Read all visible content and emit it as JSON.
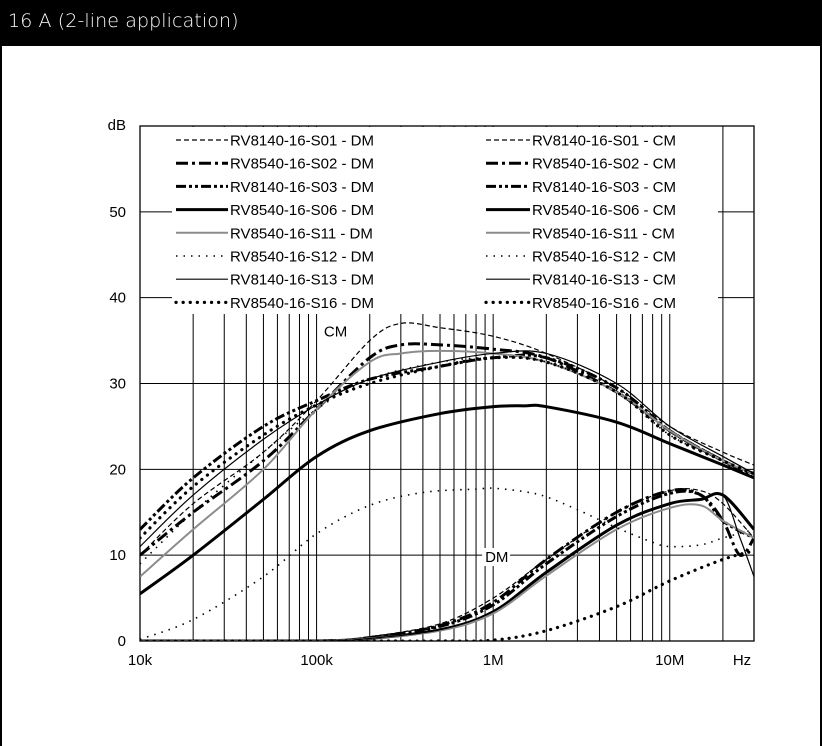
{
  "header": {
    "title": "16 A (2-line application)"
  },
  "chart_data": {
    "type": "line",
    "xscale": "log",
    "xlim": [
      10000,
      30000000
    ],
    "ylim": [
      0,
      60
    ],
    "ylabel": "dB",
    "xlabel": "Hz",
    "x_tick_values": [
      10000,
      100000,
      1000000,
      10000000
    ],
    "x_tick_labels": [
      "10k",
      "100k",
      "1M",
      "10M"
    ],
    "y_ticks": [
      0,
      10,
      20,
      30,
      40,
      50
    ],
    "grid": true,
    "legend_position": "top",
    "annotations": [
      {
        "text": "CM",
        "x": 110000,
        "y": 35.5
      },
      {
        "text": "DM",
        "x": 900000,
        "y": 9.2
      }
    ],
    "series": [
      {
        "name": "RV8140-16-S01 - DM",
        "style": "dashed-thin",
        "x": [
          10000,
          100000,
          200000,
          500000,
          1000000,
          2000000,
          5000000,
          10000000,
          15000000,
          20000000,
          30000000
        ],
        "y": [
          0,
          0,
          0.5,
          2,
          5,
          9.5,
          15,
          17.5,
          17.5,
          16,
          12
        ]
      },
      {
        "name": "RV8540-16-S02 - DM",
        "style": "dash-dot-heavy",
        "x": [
          10000,
          100000,
          200000,
          500000,
          1000000,
          2000000,
          5000000,
          10000000,
          15000000,
          20000000,
          25000000,
          30000000
        ],
        "y": [
          0,
          0,
          0.4,
          1.8,
          4.5,
          9.5,
          15,
          17.5,
          17,
          14,
          10,
          12
        ]
      },
      {
        "name": "RV8140-16-S03 - DM",
        "style": "dash-dot-dot-heavy",
        "x": [
          10000,
          100000,
          200000,
          500000,
          1000000,
          2000000,
          5000000,
          10000000,
          15000000,
          20000000,
          30000000
        ],
        "y": [
          0,
          0,
          0.4,
          1.7,
          4.2,
          9,
          14.5,
          17.2,
          17,
          14,
          12
        ]
      },
      {
        "name": "RV8540-16-S06 - DM",
        "style": "solid-heavy",
        "x": [
          10000,
          100000,
          200000,
          500000,
          1000000,
          2000000,
          5000000,
          10000000,
          15000000,
          20000000,
          30000000
        ],
        "y": [
          0,
          0,
          0.3,
          1.3,
          3.4,
          8,
          13.5,
          16,
          16.5,
          17,
          13
        ]
      },
      {
        "name": "RV8540-16-S11 - DM",
        "style": "solid-gray",
        "x": [
          10000,
          100000,
          200000,
          500000,
          1000000,
          2000000,
          5000000,
          10000000,
          15000000,
          20000000,
          30000000
        ],
        "y": [
          0,
          0,
          0.3,
          1.2,
          3.2,
          7.6,
          13,
          15.5,
          15.8,
          14,
          12
        ]
      },
      {
        "name": "RV8540-16-S12 - DM",
        "style": "dotted-fine",
        "x": [
          10000,
          20000,
          50000,
          100000,
          200000,
          400000,
          800000,
          1000000,
          1500000,
          2000000,
          3000000,
          5000000,
          8000000,
          10000000,
          15000000,
          20000000,
          30000000
        ],
        "y": [
          0.2,
          2.5,
          7.5,
          12.5,
          15.8,
          17.3,
          17.7,
          17.8,
          17.4,
          16.8,
          15.3,
          13.2,
          11.5,
          11,
          11.2,
          12,
          13
        ]
      },
      {
        "name": "RV8140-16-S13 - DM",
        "style": "solid-thin",
        "x": [
          10000,
          100000,
          200000,
          500000,
          1000000,
          2000000,
          5000000,
          10000000,
          15000000,
          20000000,
          25000000,
          30000000
        ],
        "y": [
          0,
          0,
          0.3,
          1.3,
          3.5,
          8,
          13.5,
          16,
          16.5,
          17,
          12,
          7.5
        ]
      },
      {
        "name": "RV8540-16-S16 - DM",
        "style": "dotted-heavy",
        "x": [
          10000,
          100000,
          200000,
          500000,
          1000000,
          2000000,
          5000000,
          10000000,
          20000000,
          30000000
        ],
        "y": [
          0,
          0,
          0,
          0,
          0.1,
          1.2,
          4,
          7,
          9.5,
          10.5
        ]
      },
      {
        "name": "RV8140-16-S01 - CM",
        "style": "dashed-thin",
        "x": [
          10000,
          20000,
          50000,
          100000,
          200000,
          300000,
          500000,
          1000000,
          2000000,
          5000000,
          10000000,
          20000000,
          30000000
        ],
        "y": [
          10,
          16,
          22,
          28,
          35,
          37,
          36.5,
          35.5,
          33.5,
          29.5,
          25,
          22,
          20.5
        ]
      },
      {
        "name": "RV8540-16-S02 - CM",
        "style": "dash-dot-heavy",
        "x": [
          10000,
          20000,
          50000,
          100000,
          200000,
          300000,
          500000,
          1000000,
          2000000,
          5000000,
          10000000,
          20000000,
          30000000
        ],
        "y": [
          10,
          15,
          21,
          27,
          33,
          34.5,
          34.5,
          34,
          33,
          29,
          24.5,
          21,
          19.5
        ]
      },
      {
        "name": "RV8140-16-S03 - CM",
        "style": "dash-dot-dot-heavy",
        "x": [
          10000,
          20000,
          50000,
          100000,
          200000,
          500000,
          1000000,
          2000000,
          5000000,
          10000000,
          20000000,
          30000000
        ],
        "y": [
          13,
          19,
          25,
          28,
          30.5,
          32,
          33,
          33,
          29.5,
          24.5,
          21,
          19
        ]
      },
      {
        "name": "RV8540-16-S06 - CM",
        "style": "solid-heavy",
        "x": [
          10000,
          20000,
          50000,
          100000,
          200000,
          500000,
          1000000,
          1500000,
          2000000,
          5000000,
          10000000,
          20000000,
          30000000
        ],
        "y": [
          5.5,
          10,
          16.5,
          21.5,
          24.5,
          26.5,
          27.3,
          27.4,
          27.3,
          25.5,
          23,
          20.5,
          19
        ]
      },
      {
        "name": "RV8540-16-S11 - CM",
        "style": "solid-gray",
        "x": [
          10000,
          20000,
          50000,
          100000,
          200000,
          300000,
          500000,
          1000000,
          2000000,
          5000000,
          10000000,
          20000000,
          30000000
        ],
        "y": [
          7.5,
          13,
          20,
          27,
          32.5,
          33.5,
          33.8,
          33.5,
          32.5,
          29,
          24.5,
          21,
          19.5
        ]
      },
      {
        "name": "RV8540-16-S12 - CM",
        "style": "dotted-fine",
        "x": [
          10000,
          20000,
          50000,
          100000,
          200000,
          500000,
          1000000,
          2000000,
          5000000,
          10000000,
          20000000,
          30000000
        ],
        "y": [
          9,
          15,
          22,
          27,
          30.5,
          32.5,
          33,
          32.5,
          29,
          24,
          21,
          19
        ]
      },
      {
        "name": "RV8140-16-S13 - CM",
        "style": "solid-thin",
        "x": [
          10000,
          20000,
          50000,
          100000,
          200000,
          500000,
          1000000,
          2000000,
          5000000,
          10000000,
          20000000,
          30000000
        ],
        "y": [
          11,
          17,
          23.5,
          27.5,
          30.5,
          32.5,
          33.5,
          33.5,
          30,
          25,
          21.5,
          19.5
        ]
      },
      {
        "name": "RV8540-16-S16 - CM",
        "style": "dotted-heavy",
        "x": [
          10000,
          20000,
          50000,
          100000,
          200000,
          500000,
          1000000,
          2000000,
          5000000,
          10000000,
          20000000,
          30000000
        ],
        "y": [
          12,
          18,
          24,
          27.5,
          30,
          32,
          33,
          32.5,
          29,
          24,
          21,
          19.5
        ]
      }
    ]
  }
}
